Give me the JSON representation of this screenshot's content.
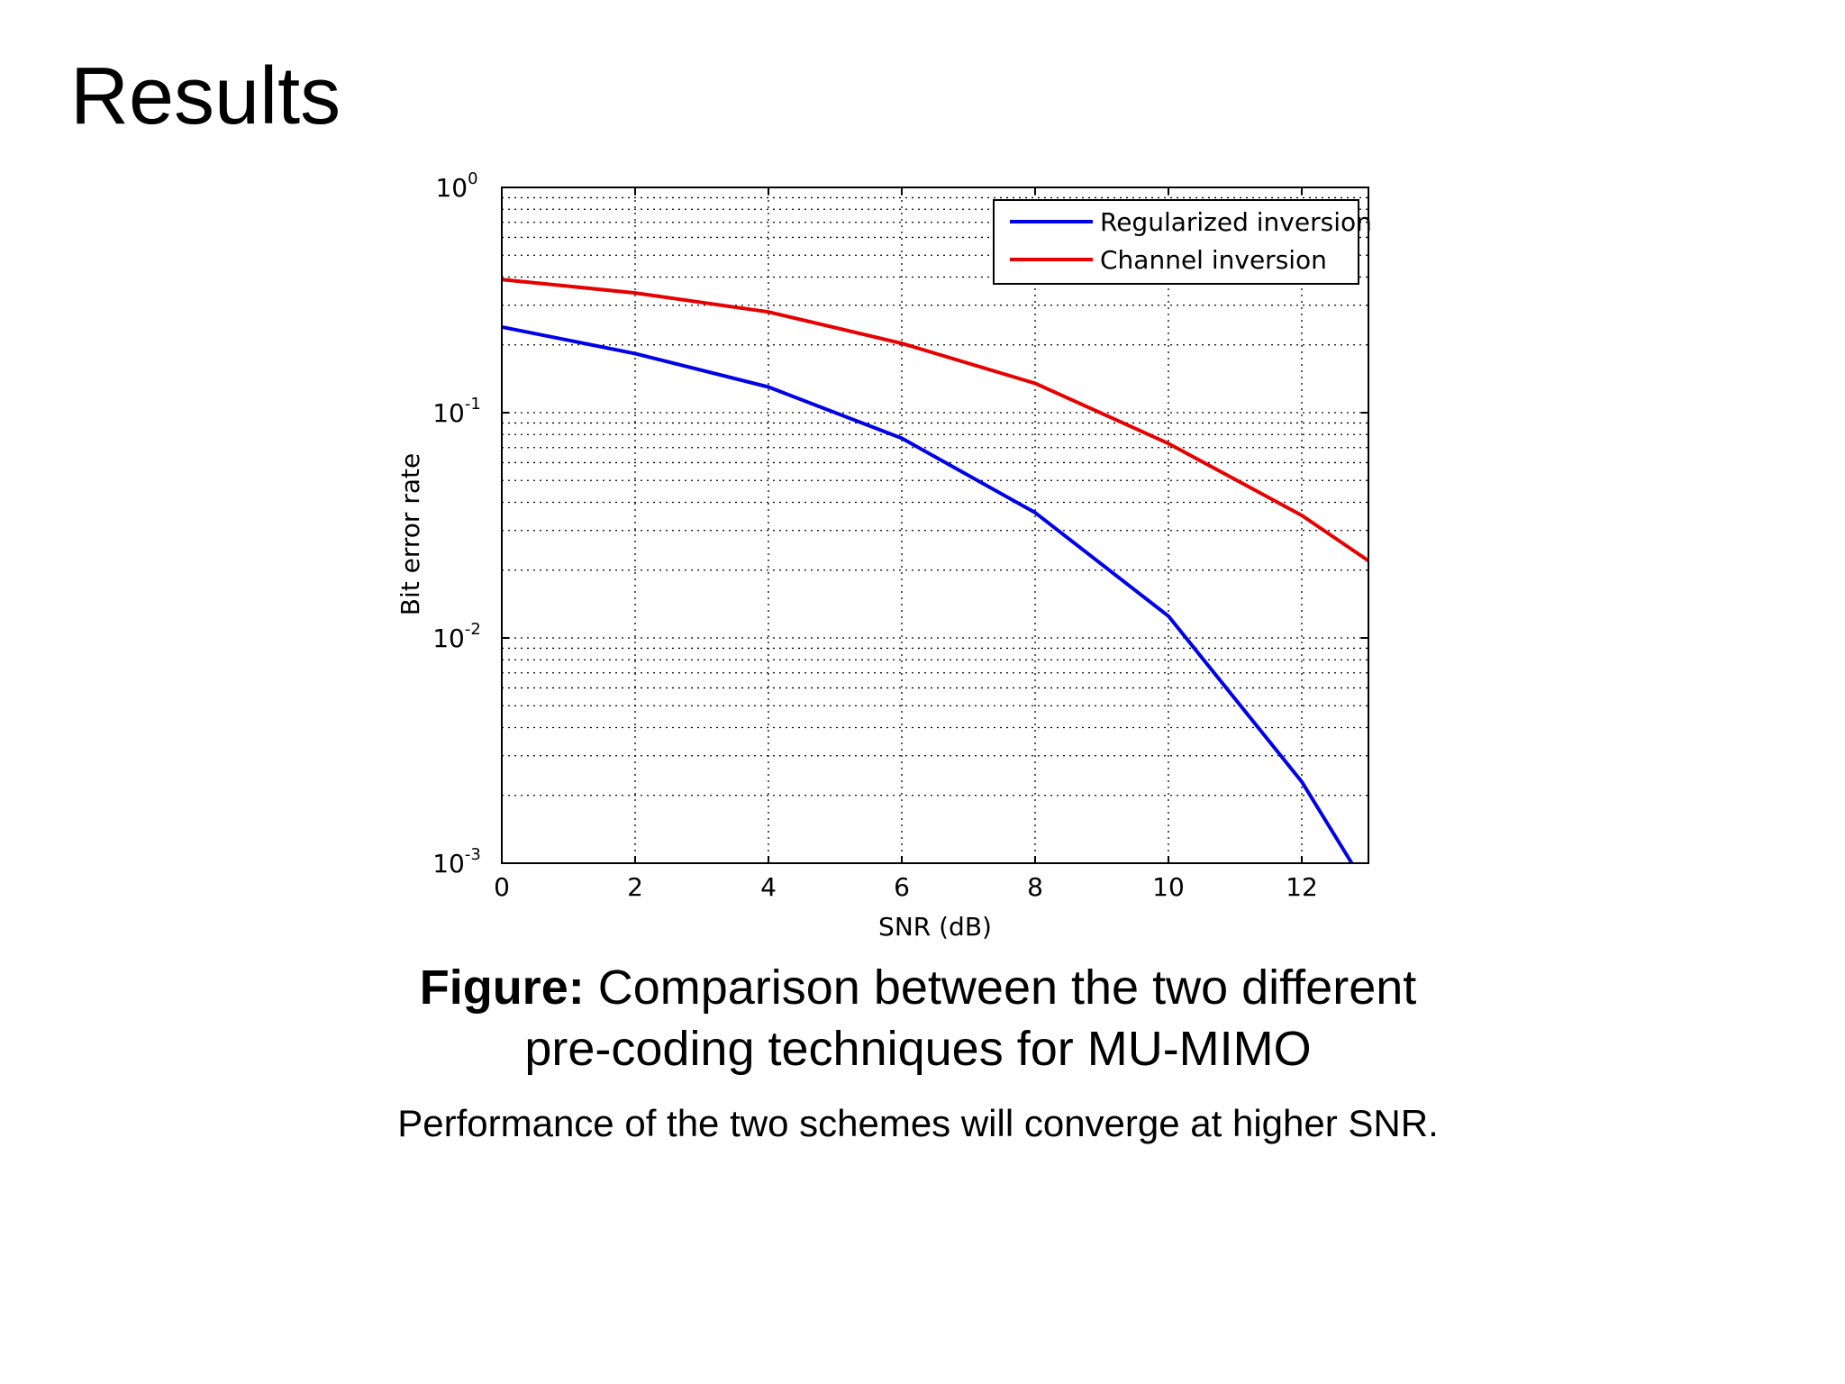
{
  "slide": {
    "title": "Results",
    "caption_bold": "Figure:",
    "caption_text": " Comparison between the two different pre-coding techniques for MU-MIMO",
    "note": "Performance of the two schemes will converge at higher SNR."
  },
  "chart_data": {
    "type": "line",
    "title": "",
    "xlabel": "SNR (dB)",
    "ylabel": "Bit error rate",
    "xlim": [
      0,
      13
    ],
    "ylim": [
      0.001,
      1
    ],
    "yscale": "log",
    "grid": true,
    "legend_position": "top-right",
    "x_ticks": [
      "0",
      "2",
      "4",
      "6",
      "8",
      "10",
      "12"
    ],
    "y_ticks": [
      {
        "base": "10",
        "exp": "0"
      },
      {
        "base": "10",
        "exp": "-1"
      },
      {
        "base": "10",
        "exp": "-2"
      },
      {
        "base": "10",
        "exp": "-3"
      }
    ],
    "series": [
      {
        "name": "Regularized inversion",
        "color": "#0000e6",
        "x": [
          0,
          2,
          4,
          6,
          8,
          10,
          12,
          12.75
        ],
        "y": [
          0.24,
          0.183,
          0.13,
          0.077,
          0.036,
          0.0125,
          0.0023,
          0.001
        ]
      },
      {
        "name": "Channel inversion",
        "color": "#e60000",
        "x": [
          0,
          2,
          4,
          6,
          8,
          10,
          12,
          13
        ],
        "y": [
          0.39,
          0.34,
          0.28,
          0.203,
          0.135,
          0.073,
          0.035,
          0.022
        ]
      }
    ]
  }
}
